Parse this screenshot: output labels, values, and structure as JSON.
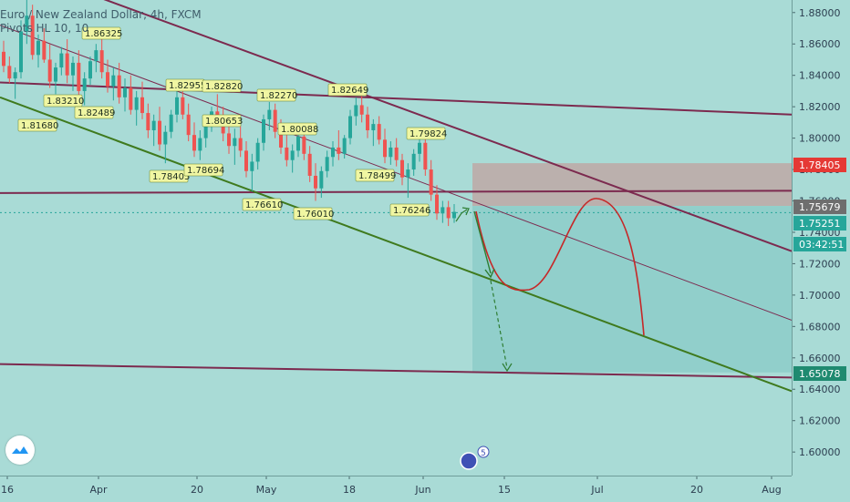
{
  "header": {
    "title": "Euro / New Zealand Dollar, 4h, FXCM",
    "indicator": "Pivots HL 10, 10"
  },
  "colors": {
    "background": "#a9dbd6",
    "bull": "#26a69a",
    "bear": "#ef5350",
    "trend_purple": "#7c2a4f",
    "trend_green": "#3f7a1e",
    "box_top": "#bcaeab",
    "box_bottom": "#8fcfca",
    "curve": "#c62828",
    "pivot_label": "#f0f6a2"
  },
  "chart_data": {
    "type": "candlestick",
    "symbol": "EURNZD",
    "timeframe": "4h",
    "ylim": [
      1.585,
      1.888
    ],
    "y_ticks": [
      "1.88000",
      "1.86000",
      "1.84000",
      "1.82000",
      "1.80000",
      "1.78000",
      "1.76000",
      "1.74000",
      "1.72000",
      "1.70000",
      "1.68000",
      "1.66000",
      "1.64000",
      "1.62000",
      "1.60000"
    ],
    "x_ticks": [
      "16",
      "Apr",
      "20",
      "May",
      "18",
      "Jun",
      "15",
      "Jul",
      "20",
      "Aug"
    ],
    "price_labels": [
      {
        "value": "1.78405",
        "color": "#e53935"
      },
      {
        "value": "1.75679",
        "color": "#6e6e6e"
      },
      {
        "value": "1.75251",
        "color": "#26a69a"
      },
      {
        "value": "03:42:51",
        "color": "#26a69a"
      },
      {
        "value": "1.65078",
        "color": "#1f8a70"
      }
    ],
    "pivot_labels": [
      "1.86325",
      "1.83210",
      "1.81680",
      "1.82489",
      "1.82955",
      "1.82820",
      "1.82270",
      "1.82649",
      "1.80653",
      "1.80088",
      "1.79824",
      "1.78405",
      "1.78694",
      "1.78499",
      "1.76610",
      "1.76010",
      "1.76246"
    ],
    "candles_ohlc": [
      [
        1.855,
        1.862,
        1.842,
        1.846
      ],
      [
        1.846,
        1.852,
        1.835,
        1.838
      ],
      [
        1.838,
        1.845,
        1.825,
        1.842
      ],
      [
        1.842,
        1.875,
        1.838,
        1.868
      ],
      [
        1.868,
        1.888,
        1.86,
        1.878
      ],
      [
        1.878,
        1.885,
        1.85,
        1.853
      ],
      [
        1.853,
        1.866,
        1.845,
        1.862
      ],
      [
        1.862,
        1.87,
        1.848,
        1.85
      ],
      [
        1.85,
        1.86,
        1.832,
        1.836
      ],
      [
        1.836,
        1.848,
        1.828,
        1.845
      ],
      [
        1.845,
        1.858,
        1.84,
        1.854
      ],
      [
        1.854,
        1.863,
        1.835,
        1.84
      ],
      [
        1.84,
        1.852,
        1.83,
        1.848
      ],
      [
        1.848,
        1.856,
        1.826,
        1.83
      ],
      [
        1.83,
        1.842,
        1.821,
        1.838
      ],
      [
        1.838,
        1.852,
        1.834,
        1.849
      ],
      [
        1.849,
        1.86,
        1.842,
        1.856
      ],
      [
        1.856,
        1.864,
        1.838,
        1.842
      ],
      [
        1.842,
        1.85,
        1.829,
        1.833
      ],
      [
        1.833,
        1.845,
        1.824,
        1.84
      ],
      [
        1.84,
        1.848,
        1.822,
        1.826
      ],
      [
        1.826,
        1.838,
        1.817,
        1.832
      ],
      [
        1.832,
        1.84,
        1.815,
        1.818
      ],
      [
        1.818,
        1.83,
        1.808,
        1.826
      ],
      [
        1.826,
        1.836,
        1.812,
        1.816
      ],
      [
        1.816,
        1.822,
        1.8,
        1.805
      ],
      [
        1.805,
        1.815,
        1.795,
        1.811
      ],
      [
        1.811,
        1.82,
        1.792,
        1.796
      ],
      [
        1.796,
        1.808,
        1.784,
        1.804
      ],
      [
        1.804,
        1.818,
        1.8,
        1.815
      ],
      [
        1.815,
        1.83,
        1.81,
        1.826
      ],
      [
        1.826,
        1.831,
        1.812,
        1.815
      ],
      [
        1.815,
        1.822,
        1.798,
        1.802
      ],
      [
        1.802,
        1.81,
        1.788,
        1.792
      ],
      [
        1.792,
        1.805,
        1.786,
        1.8
      ],
      [
        1.8,
        1.812,
        1.794,
        1.808
      ],
      [
        1.808,
        1.82,
        1.804,
        1.817
      ],
      [
        1.817,
        1.828,
        1.808,
        1.812
      ],
      [
        1.812,
        1.82,
        1.798,
        1.803
      ],
      [
        1.803,
        1.811,
        1.79,
        1.795
      ],
      [
        1.795,
        1.806,
        1.783,
        1.8
      ],
      [
        1.8,
        1.81,
        1.788,
        1.792
      ],
      [
        1.792,
        1.798,
        1.775,
        1.779
      ],
      [
        1.779,
        1.79,
        1.766,
        1.785
      ],
      [
        1.785,
        1.8,
        1.78,
        1.797
      ],
      [
        1.797,
        1.815,
        1.792,
        1.812
      ],
      [
        1.812,
        1.823,
        1.805,
        1.818
      ],
      [
        1.818,
        1.822,
        1.8,
        1.804
      ],
      [
        1.804,
        1.812,
        1.79,
        1.794
      ],
      [
        1.794,
        1.802,
        1.782,
        1.786
      ],
      [
        1.786,
        1.796,
        1.778,
        1.792
      ],
      [
        1.792,
        1.806,
        1.788,
        1.801
      ],
      [
        1.801,
        1.808,
        1.786,
        1.79
      ],
      [
        1.79,
        1.795,
        1.772,
        1.776
      ],
      [
        1.776,
        1.784,
        1.76,
        1.768
      ],
      [
        1.768,
        1.782,
        1.762,
        1.779
      ],
      [
        1.779,
        1.792,
        1.775,
        1.788
      ],
      [
        1.788,
        1.798,
        1.782,
        1.794
      ],
      [
        1.794,
        1.805,
        1.786,
        1.79
      ],
      [
        1.79,
        1.802,
        1.787,
        1.8
      ],
      [
        1.8,
        1.818,
        1.796,
        1.814
      ],
      [
        1.814,
        1.826,
        1.808,
        1.821
      ],
      [
        1.821,
        1.828,
        1.81,
        1.815
      ],
      [
        1.815,
        1.82,
        1.8,
        1.805
      ],
      [
        1.805,
        1.812,
        1.795,
        1.809
      ],
      [
        1.809,
        1.814,
        1.796,
        1.799
      ],
      [
        1.799,
        1.806,
        1.784,
        1.788
      ],
      [
        1.788,
        1.798,
        1.783,
        1.794
      ],
      [
        1.794,
        1.8,
        1.782,
        1.786
      ],
      [
        1.786,
        1.79,
        1.77,
        1.775
      ],
      [
        1.775,
        1.784,
        1.762,
        1.78
      ],
      [
        1.78,
        1.793,
        1.776,
        1.79
      ],
      [
        1.79,
        1.802,
        1.785,
        1.797
      ],
      [
        1.797,
        1.8,
        1.776,
        1.78
      ],
      [
        1.78,
        1.786,
        1.76,
        1.764
      ],
      [
        1.764,
        1.77,
        1.748,
        1.752
      ],
      [
        1.752,
        1.76,
        1.746,
        1.756
      ],
      [
        1.756,
        1.76,
        1.744,
        1.749
      ],
      [
        1.749,
        1.758,
        1.746,
        1.753
      ]
    ],
    "annotations": {
      "target_box": {
        "from": 1.78405,
        "mid": 1.75679,
        "to": 1.65078
      },
      "projection_curve": "down-up-down"
    }
  }
}
